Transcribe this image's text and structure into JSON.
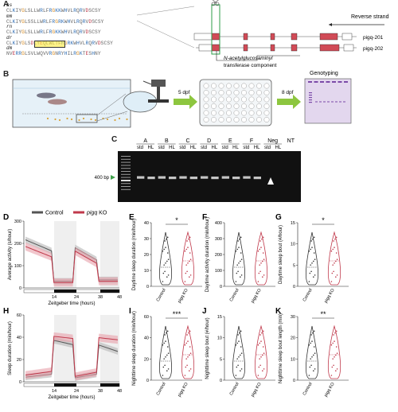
{
  "panelA": {
    "label": "A",
    "species": [
      {
        "name": "hs",
        "seq": "CLKIYGLSLLWRLFRGKKWHVLRQRVDSCSY"
      },
      {
        "name": "mm",
        "seq": "CLKIYGLSSLLWRLFRGRKWHVLRQRVDSCSY"
      },
      {
        "name": "rn",
        "seq": "CLKIYGLSLLWRLFRGKKWHVLRQRVDSCSY"
      },
      {
        "name": "dr",
        "seq": "CLKIYGLSDLYEQLWLTFRGRKWHVLRQRVDSCSY"
      },
      {
        "name": "dm",
        "seq": "NVERRGLSVLWQVVRGNRYHILRGKTESHNY"
      }
    ],
    "strand_label": "Reverse strand",
    "transcripts": [
      "pigq-201",
      "pigq-202"
    ],
    "domain_label_1": "N-acetylglucosaminyl",
    "domain_label_2": "transferase component"
  },
  "panelB": {
    "label": "B",
    "step1": "5 dpf",
    "step2": "8 dpf",
    "genotyping": "Genotyping"
  },
  "panelC": {
    "label": "C",
    "groups": [
      "A",
      "B",
      "C",
      "D",
      "E",
      "F",
      "Neg",
      "NT"
    ],
    "lanes": [
      "std",
      "HL",
      "std",
      "HL",
      "std",
      "HL",
      "std",
      "HL",
      "std",
      "HL",
      "std",
      "HL",
      "std",
      "HL"
    ],
    "ladder_label": "400 bp"
  },
  "legend": {
    "control": "Control",
    "ko": "pigq KO",
    "ko_italic": "pigq",
    "ko_suffix": " KO"
  },
  "colors": {
    "control": "#555555",
    "ko": "#c0394b",
    "ko_fill": "#e8a0aa",
    "ctrl_fill": "#b5b5b5"
  },
  "panelD": {
    "label": "D",
    "ylabel": "Average activity (s/hour)",
    "xlabel": "Zeitgeber time (hours)",
    "yticks": [
      "0",
      "100",
      "200",
      "300"
    ],
    "xticks": [
      "14",
      "24",
      "38",
      "48"
    ]
  },
  "panelH": {
    "label": "H",
    "ylabel": "Sleep duration (min/hour)",
    "xlabel": "Zeitgeber time (hours)",
    "yticks": [
      "0",
      "20",
      "40",
      "60"
    ],
    "xticks": [
      "14",
      "24",
      "38",
      "48"
    ]
  },
  "violins": [
    {
      "id": "E",
      "ylabel": "Daytime sleep duration (min/hour)",
      "yticks": [
        "0",
        "10",
        "20",
        "30",
        "40"
      ],
      "ymax": 40,
      "sig": "*"
    },
    {
      "id": "F",
      "ylabel": "Daytime activity duration (min/hour)",
      "yticks": [
        "0",
        "100",
        "200",
        "300",
        "400"
      ],
      "ymax": 400,
      "sig": ""
    },
    {
      "id": "G",
      "ylabel": "Daytime sleep bout (#/hour)",
      "yticks": [
        "0",
        "5",
        "10",
        "15"
      ],
      "ymax": 15,
      "sig": "*"
    },
    {
      "id": "I",
      "ylabel": "Nighttime sleep duration (min/hour)",
      "yticks": [
        "0",
        "20",
        "40",
        "60"
      ],
      "ymax": 60,
      "sig": "***"
    },
    {
      "id": "J",
      "ylabel": "Nighttime sleep bout (#/hour)",
      "yticks": [
        "0",
        "5",
        "10",
        "15"
      ],
      "ymax": 15,
      "sig": ""
    },
    {
      "id": "K",
      "ylabel": "Nighttime sleep bout length (min)",
      "yticks": [
        "0",
        "10",
        "20",
        "30"
      ],
      "ymax": 30,
      "sig": "**"
    }
  ],
  "xcats": [
    "Control",
    "pigq KO"
  ]
}
